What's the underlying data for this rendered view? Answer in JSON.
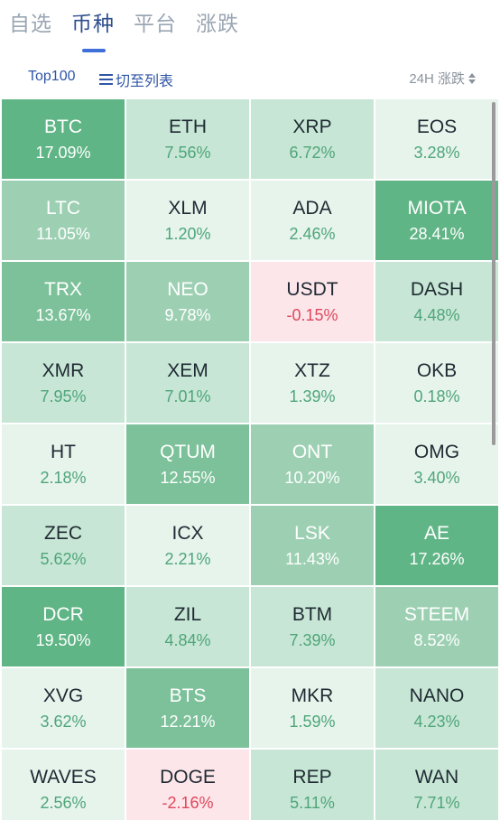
{
  "tabs": [
    {
      "label": "自选",
      "active": false
    },
    {
      "label": "币种",
      "active": true
    },
    {
      "label": "平台",
      "active": false
    },
    {
      "label": "涨跌",
      "active": false
    }
  ],
  "subbar": {
    "top100_label": "Top100",
    "list_label": "切至列表",
    "sort_label": "24H 涨跌"
  },
  "colors": {
    "d5": "#5fb585",
    "d4": "#7cc19a",
    "d3": "#9dd0b3",
    "l2": "#c7e6d5",
    "l1": "#e6f4ec",
    "neg": "#fde6ea"
  },
  "coins": [
    {
      "symbol": "BTC",
      "change": "17.09%",
      "shade": "d5"
    },
    {
      "symbol": "ETH",
      "change": "7.56%",
      "shade": "l2"
    },
    {
      "symbol": "XRP",
      "change": "6.72%",
      "shade": "l2"
    },
    {
      "symbol": "EOS",
      "change": "3.28%",
      "shade": "l1"
    },
    {
      "symbol": "LTC",
      "change": "11.05%",
      "shade": "d3"
    },
    {
      "symbol": "XLM",
      "change": "1.20%",
      "shade": "l1"
    },
    {
      "symbol": "ADA",
      "change": "2.46%",
      "shade": "l1"
    },
    {
      "symbol": "MIOTA",
      "change": "28.41%",
      "shade": "d5"
    },
    {
      "symbol": "TRX",
      "change": "13.67%",
      "shade": "d4"
    },
    {
      "symbol": "NEO",
      "change": "9.78%",
      "shade": "d3"
    },
    {
      "symbol": "USDT",
      "change": "-0.15%",
      "shade": "neg"
    },
    {
      "symbol": "DASH",
      "change": "4.48%",
      "shade": "l2"
    },
    {
      "symbol": "XMR",
      "change": "7.95%",
      "shade": "l2"
    },
    {
      "symbol": "XEM",
      "change": "7.01%",
      "shade": "l2"
    },
    {
      "symbol": "XTZ",
      "change": "1.39%",
      "shade": "l1"
    },
    {
      "symbol": "OKB",
      "change": "0.18%",
      "shade": "l1"
    },
    {
      "symbol": "HT",
      "change": "2.18%",
      "shade": "l1"
    },
    {
      "symbol": "QTUM",
      "change": "12.55%",
      "shade": "d4"
    },
    {
      "symbol": "ONT",
      "change": "10.20%",
      "shade": "d3"
    },
    {
      "symbol": "OMG",
      "change": "3.40%",
      "shade": "l1"
    },
    {
      "symbol": "ZEC",
      "change": "5.62%",
      "shade": "l2"
    },
    {
      "symbol": "ICX",
      "change": "2.21%",
      "shade": "l1"
    },
    {
      "symbol": "LSK",
      "change": "11.43%",
      "shade": "d3"
    },
    {
      "symbol": "AE",
      "change": "17.26%",
      "shade": "d5"
    },
    {
      "symbol": "DCR",
      "change": "19.50%",
      "shade": "d5"
    },
    {
      "symbol": "ZIL",
      "change": "4.84%",
      "shade": "l2"
    },
    {
      "symbol": "BTM",
      "change": "7.39%",
      "shade": "l2"
    },
    {
      "symbol": "STEEM",
      "change": "8.52%",
      "shade": "d3"
    },
    {
      "symbol": "XVG",
      "change": "3.62%",
      "shade": "l1"
    },
    {
      "symbol": "BTS",
      "change": "12.21%",
      "shade": "d4"
    },
    {
      "symbol": "MKR",
      "change": "1.59%",
      "shade": "l1"
    },
    {
      "symbol": "NANO",
      "change": "4.23%",
      "shade": "l2"
    },
    {
      "symbol": "WAVES",
      "change": "2.56%",
      "shade": "l1"
    },
    {
      "symbol": "DOGE",
      "change": "-2.16%",
      "shade": "neg"
    },
    {
      "symbol": "REP",
      "change": "5.11%",
      "shade": "l2"
    },
    {
      "symbol": "WAN",
      "change": "7.71%",
      "shade": "l2"
    }
  ]
}
